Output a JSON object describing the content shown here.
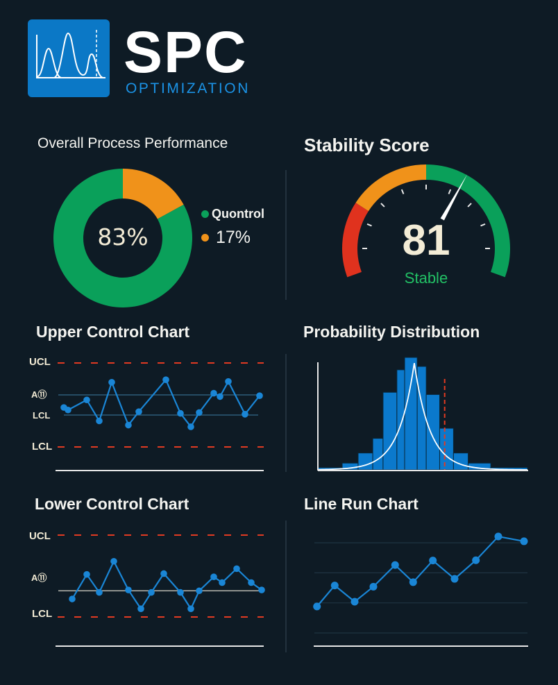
{
  "header": {
    "brand": "SPC",
    "subtitle": "OPTIMIZATION",
    "logo_icon": "distribution-curves-icon"
  },
  "colors": {
    "background": "#0e1b25",
    "green": "#0aa05a",
    "orange": "#f0921a",
    "red": "#e0321e",
    "blue": "#1a86d6",
    "limit_red": "#e23a22"
  },
  "chart_data": [
    {
      "type": "pie",
      "variant": "donut",
      "title": "Overall Process Performance",
      "center_label": "83%",
      "slices": [
        {
          "name": "Quontrol",
          "value": 83,
          "color": "#0aa05a"
        },
        {
          "name": "17%",
          "value": 17,
          "color": "#f0921a"
        }
      ],
      "legend": [
        "Quontrol",
        "17%"
      ],
      "legend_position": "right"
    },
    {
      "type": "gauge",
      "title": "Stability Score",
      "value": 81,
      "value_label": "81",
      "status": "Stable",
      "status_color": "#22c065",
      "zones": [
        "red",
        "orange",
        "green"
      ]
    },
    {
      "type": "line",
      "title": "Upper Control Chart",
      "limit_labels": [
        "UCL",
        "A⑪",
        "LCL",
        "LCL"
      ],
      "ucl": 100,
      "center_upper": 62,
      "center_lower": 38,
      "lcl": 0,
      "x": [
        4,
        6,
        15,
        21,
        27,
        35,
        40,
        53,
        60,
        65,
        69,
        76,
        79,
        83,
        91,
        98
      ],
      "y": [
        47,
        44,
        56,
        31,
        77,
        26,
        42,
        80,
        40,
        24,
        41,
        64,
        60,
        78,
        39,
        61
      ],
      "grid": false
    },
    {
      "type": "histogram",
      "title": "Probability Distribution",
      "bin_edges": [
        0,
        11.6,
        19.2,
        26.2,
        31.1,
        37.7,
        41.4,
        47.4,
        51.7,
        58.1,
        64.7,
        71.7,
        82.5,
        100
      ],
      "values": [
        2,
        6,
        15,
        28,
        69,
        89,
        100,
        92,
        67,
        37,
        15,
        6,
        2
      ],
      "spec_limit": 60.5,
      "fit_curve": true
    },
    {
      "type": "line",
      "title": "Lower Control Chart",
      "limit_labels": [
        "UCL",
        "A⑪",
        "LCL"
      ],
      "ucl": 100,
      "center": 32,
      "lcl": 0,
      "x": [
        8,
        15,
        21,
        28,
        35,
        41,
        46,
        52,
        60,
        65,
        69,
        76,
        80,
        87,
        94,
        99
      ],
      "y": [
        22,
        52,
        30,
        68,
        33,
        10,
        30,
        53,
        30,
        10,
        32,
        49,
        42,
        59,
        42,
        33
      ],
      "grid": false
    },
    {
      "type": "line",
      "title": "Line Run Chart",
      "x": [
        1,
        2,
        3,
        4,
        5,
        6,
        7,
        8,
        9,
        10,
        11
      ],
      "y": [
        8.8,
        15.8,
        10.4,
        15.4,
        22.6,
        16.9,
        24.1,
        18.0,
        24.2,
        32.1,
        30.5
      ],
      "ylim": [
        -4,
        35
      ],
      "grid": true
    }
  ]
}
